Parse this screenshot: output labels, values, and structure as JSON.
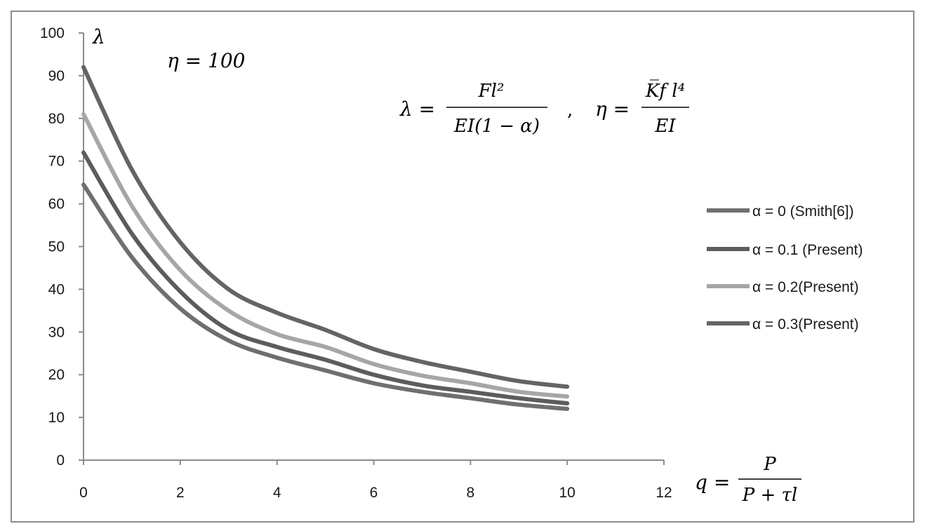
{
  "chart_data": {
    "type": "line",
    "x_ticks": [
      "0",
      "2",
      "4",
      "6",
      "8",
      "10",
      "12"
    ],
    "y_ticks": [
      "0",
      "10",
      "20",
      "30",
      "40",
      "50",
      "60",
      "70",
      "80",
      "90",
      "100"
    ],
    "xlim": [
      0,
      12
    ],
    "ylim": [
      0,
      100
    ],
    "grid": false,
    "legend_placement": "right",
    "y_axis_symbol": "λ",
    "annotation_eta": "η = 100",
    "formula_lambda_lhs": "λ =",
    "formula_lambda_num": "Fl²",
    "formula_lambda_den": "EI(1 − α)",
    "formula_sep": ",",
    "formula_eta_lhs": "η =",
    "formula_eta_num": "K̅f l⁴",
    "formula_eta_den": "EI",
    "x_axis_lhs": "q =",
    "x_axis_num": "P",
    "x_axis_den": "P + τl",
    "x": [
      0,
      1,
      2,
      3,
      4,
      5,
      6,
      7,
      8,
      9,
      10
    ],
    "series": [
      {
        "name": "α = 0 (Smith[6])",
        "color": "#6f6f6f",
        "values": [
          64.5,
          47.5,
          35.5,
          28.0,
          24.0,
          21.0,
          18.0,
          16.0,
          14.5,
          13.0,
          12.0
        ]
      },
      {
        "name": "α = 0.1 (Present)",
        "color": "#5c5c5c",
        "values": [
          72.0,
          53.0,
          39.5,
          30.5,
          26.5,
          23.5,
          20.0,
          17.5,
          16.0,
          14.5,
          13.3
        ]
      },
      {
        "name": "α = 0.2(Present)",
        "color": "#a6a6a6",
        "values": [
          81.0,
          59.5,
          44.5,
          35.0,
          29.5,
          26.5,
          22.5,
          19.8,
          18.0,
          16.0,
          14.9
        ]
      },
      {
        "name": "α = 0.3(Present)",
        "color": "#646464",
        "values": [
          92.0,
          68.0,
          51.0,
          40.0,
          34.5,
          30.5,
          26.0,
          23.0,
          20.7,
          18.5,
          17.2
        ]
      }
    ]
  }
}
